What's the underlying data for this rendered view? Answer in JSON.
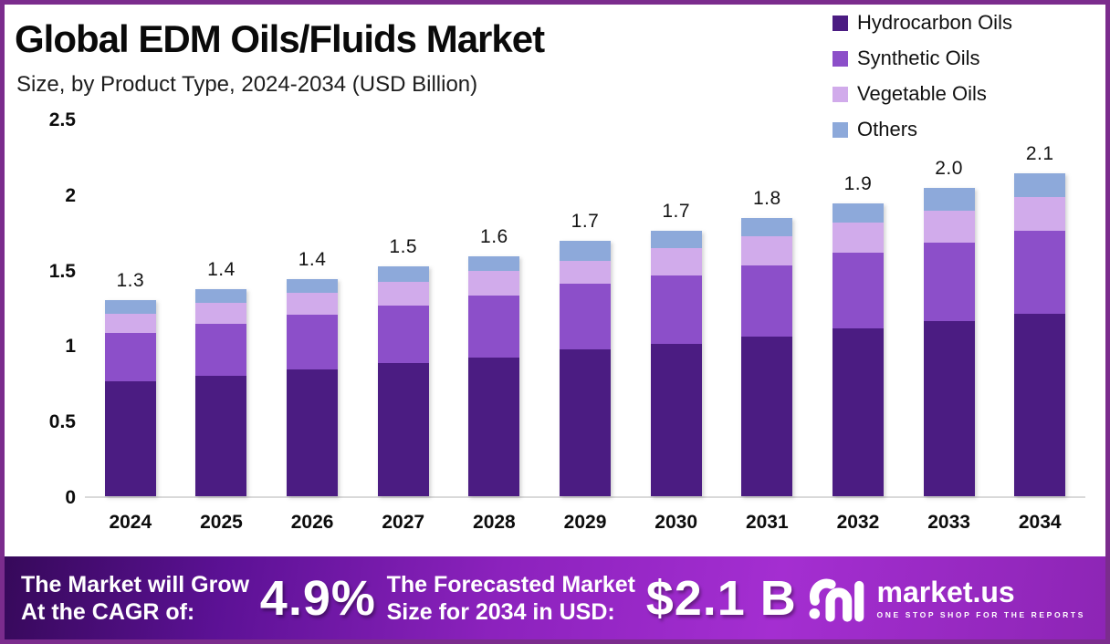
{
  "page": {
    "border_color": "#7b2c8d",
    "background": "#ffffff"
  },
  "header": {
    "title": "Global EDM Oils/Fluids Market",
    "subtitle": "Size, by Product Type, 2024-2034 (USD Billion)"
  },
  "chart_data": {
    "type": "bar",
    "stacked": true,
    "title": "Global EDM Oils/Fluids Market",
    "subtitle": "Size, by Product Type, 2024-2034 (USD Billion)",
    "unit": "USD Billion",
    "categories": [
      "2024",
      "2025",
      "2026",
      "2027",
      "2028",
      "2029",
      "2030",
      "2031",
      "2032",
      "2033",
      "2034"
    ],
    "series": [
      {
        "name": "Hydrocarbon Oils",
        "color": "#4b1c82",
        "values": [
          0.76,
          0.8,
          0.84,
          0.88,
          0.92,
          0.97,
          1.01,
          1.06,
          1.11,
          1.16,
          1.21
        ]
      },
      {
        "name": "Synthetic Oils",
        "color": "#8c4fc9",
        "values": [
          0.32,
          0.34,
          0.36,
          0.38,
          0.41,
          0.44,
          0.45,
          0.47,
          0.5,
          0.52,
          0.55
        ]
      },
      {
        "name": "Vegetable Oils",
        "color": "#d1abeb",
        "values": [
          0.13,
          0.14,
          0.15,
          0.16,
          0.16,
          0.15,
          0.18,
          0.19,
          0.2,
          0.21,
          0.22
        ]
      },
      {
        "name": "Others",
        "color": "#8da9da",
        "values": [
          0.09,
          0.09,
          0.09,
          0.1,
          0.1,
          0.13,
          0.12,
          0.12,
          0.13,
          0.15,
          0.16
        ]
      }
    ],
    "total_labels": [
      "1.3",
      "1.4",
      "1.4",
      "1.5",
      "1.6",
      "1.7",
      "1.7",
      "1.8",
      "1.9",
      "2.0",
      "2.1"
    ],
    "ylim": [
      0,
      2.5
    ],
    "yticks": [
      0,
      0.5,
      1,
      1.5,
      2,
      2.5
    ],
    "ytick_labels": [
      "0",
      "0.5",
      "1",
      "1.5",
      "2",
      "2.5"
    ],
    "grid": false,
    "legend_position": "top-right"
  },
  "footer": {
    "cagr_label": "The Market will Grow\nAt the CAGR of:",
    "cagr_value": "4.9%",
    "forecast_label": "The Forecasted Market\nSize for 2034 in USD:",
    "forecast_value": "$2.1 B",
    "brand_name": "market.us",
    "brand_tagline": "ONE STOP SHOP FOR THE REPORTS"
  }
}
